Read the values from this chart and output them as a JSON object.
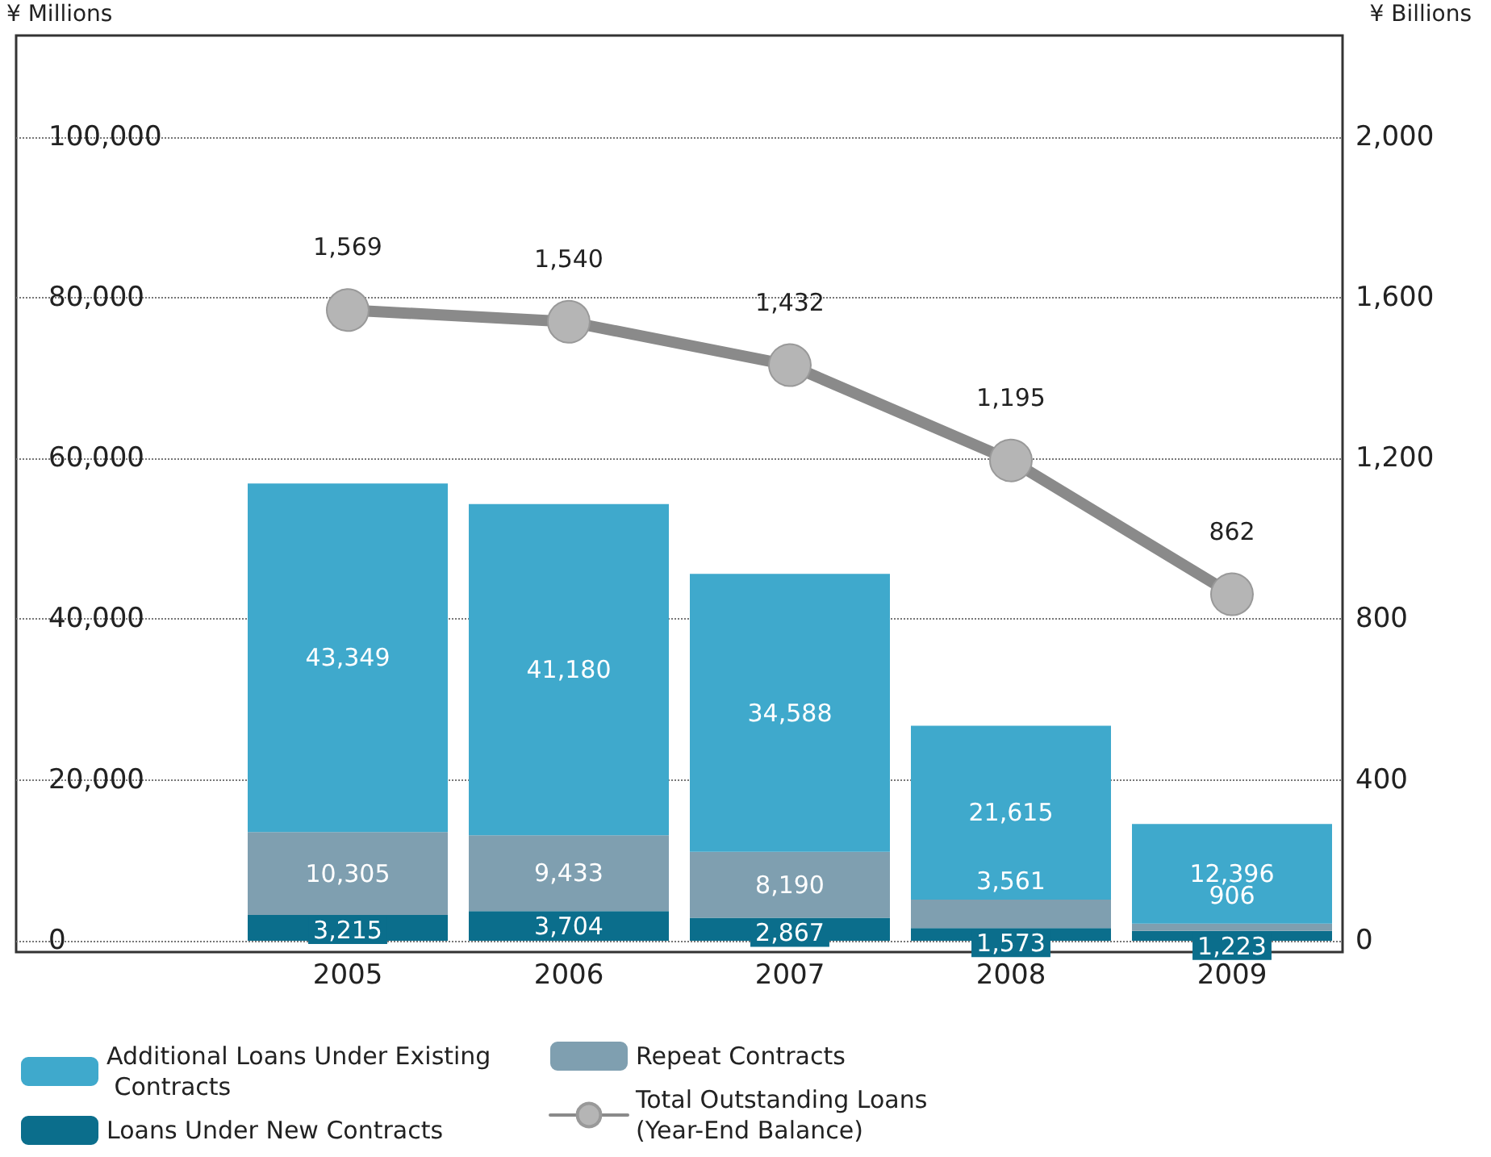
{
  "chart_data": {
    "type": "bar",
    "stacked": true,
    "ylabel": "¥ Millions",
    "y2label": "¥ Billions",
    "categories": [
      null,
      "2005",
      "2006",
      "2007",
      "2008",
      "2009"
    ],
    "series": [
      {
        "name": "Loans Under New Contracts",
        "color": "#0b6e8c",
        "values": [
          null,
          3215,
          3704,
          2867,
          1573,
          1223
        ],
        "value_labels": [
          null,
          "3,215",
          "3,704",
          "2,867",
          "1,573",
          "1,223"
        ]
      },
      {
        "name": "Repeat Contracts",
        "color": "#7f9fb0",
        "values": [
          null,
          10305,
          9433,
          8190,
          3561,
          906
        ],
        "value_labels": [
          null,
          "10,305",
          "9,433",
          "8,190",
          "3,561",
          "906"
        ]
      },
      {
        "name": "Additional Loans Under Existing Contracts",
        "color": "#3fa9cc",
        "values": [
          null,
          43349,
          41180,
          34588,
          21615,
          12396
        ],
        "value_labels": [
          null,
          "43,349",
          "41,180",
          "34,588",
          "21,615",
          "12,396"
        ]
      },
      {
        "name": "Total Outstanding Loans (Year-End Balance)",
        "type": "line",
        "axis": "y2",
        "color": "#8a8a8a",
        "marker": "circle",
        "line_style": "solid",
        "values": [
          null,
          1569,
          1540,
          1432,
          1195,
          862
        ],
        "value_labels": [
          null,
          "1,569",
          "1,540",
          "1,432",
          "1,195",
          "862"
        ]
      }
    ],
    "ylim": [
      -1400,
      112600
    ],
    "yticks": [
      0,
      {
        "value": 20000,
        "label": "20,000"
      },
      {
        "value": 40000,
        "label": "40,000"
      },
      {
        "value": 60000,
        "label": "60,000"
      },
      {
        "value": 80000,
        "label": "80,000"
      },
      {
        "value": 100000,
        "label": "100,000"
      }
    ],
    "y2lim": [
      -28,
      2252
    ],
    "y2ticks": [
      0,
      400,
      800,
      {
        "value": 1200,
        "label": "1,200"
      },
      {
        "value": 1600,
        "label": "1,600"
      },
      {
        "value": 2000,
        "label": "2,000"
      }
    ],
    "grid": "y",
    "legend": "bottom"
  }
}
